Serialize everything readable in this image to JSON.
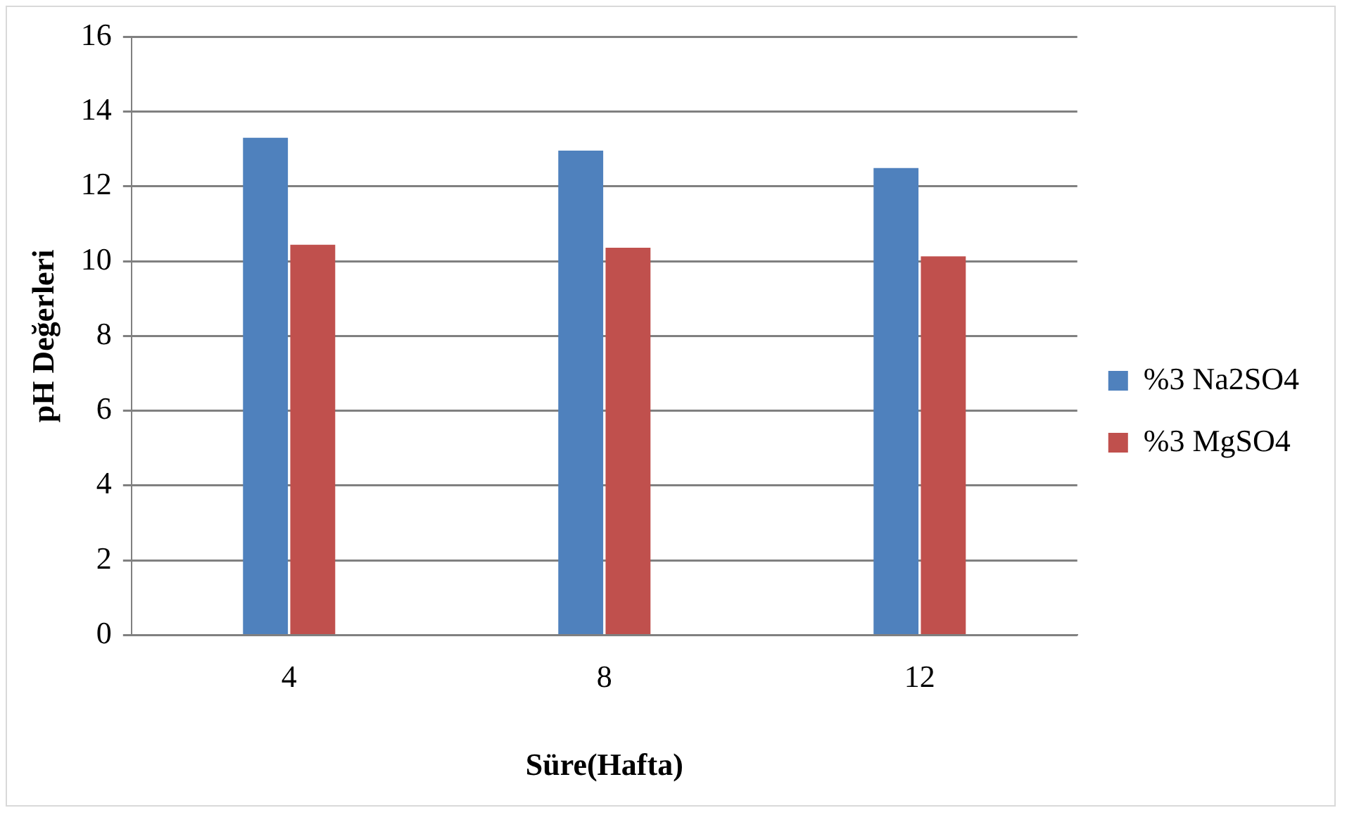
{
  "chart_data": {
    "type": "bar",
    "xlabel": "Süre(Hafta)",
    "ylabel": "pH Değerleri",
    "categories": [
      "4",
      "8",
      "12"
    ],
    "series": [
      {
        "name": "%3 Na2SO4",
        "color": "#4f81bd",
        "values": [
          13.3,
          12.96,
          12.49
        ]
      },
      {
        "name": "%3 MgSO4",
        "color": "#c0504d",
        "values": [
          10.44,
          10.36,
          10.13
        ]
      }
    ],
    "ylim": [
      0,
      16
    ],
    "yticks": [
      0,
      2,
      4,
      6,
      8,
      10,
      12,
      14,
      16
    ],
    "grid": "y",
    "legend": "right"
  }
}
